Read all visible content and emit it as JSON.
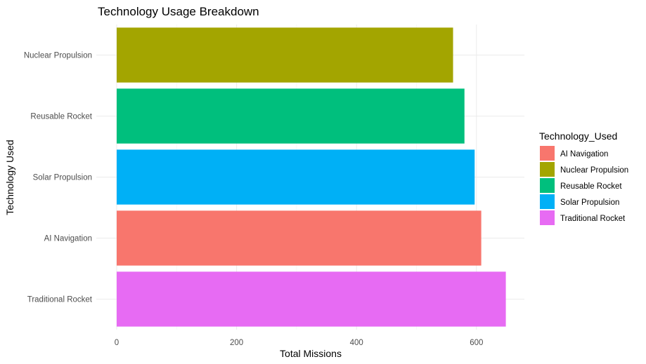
{
  "chart_data": {
    "type": "bar",
    "orientation": "horizontal",
    "title": "Technology Usage Breakdown",
    "xlabel": "Total Missions",
    "ylabel": "Technology Used",
    "xlim": [
      0,
      680
    ],
    "x_ticks": [
      0,
      200,
      400,
      600
    ],
    "categories": [
      "Nuclear Propulsion",
      "Reusable Rocket",
      "Solar Propulsion",
      "AI Navigation",
      "Traditional Rocket"
    ],
    "values": [
      561,
      580,
      597,
      608,
      649
    ],
    "bar_colors": [
      "#A3A500",
      "#00BF7D",
      "#00B0F6",
      "#F8766D",
      "#E76BF3"
    ],
    "grid": true,
    "legend": {
      "title": "Technology_Used",
      "position": "right",
      "items": [
        {
          "label": "AI Navigation",
          "color": "#F8766D"
        },
        {
          "label": "Nuclear Propulsion",
          "color": "#A3A500"
        },
        {
          "label": "Reusable Rocket",
          "color": "#00BF7D"
        },
        {
          "label": "Solar Propulsion",
          "color": "#00B0F6"
        },
        {
          "label": "Traditional Rocket",
          "color": "#E76BF3"
        }
      ]
    }
  }
}
